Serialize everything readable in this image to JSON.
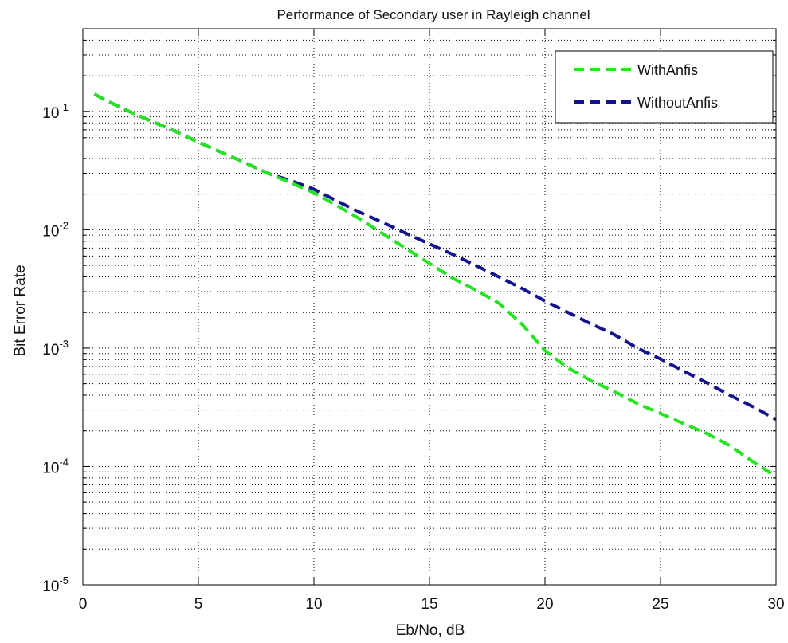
{
  "chart_data": {
    "type": "line",
    "title": "Performance of Secondary user in Rayleigh channel",
    "xlabel": "Eb/No, dB",
    "ylabel": "Bit Error Rate",
    "xlim": [
      0,
      30
    ],
    "ylim": [
      1e-05,
      0.5
    ],
    "yscale": "log",
    "grid": true,
    "legend_position": "top-right",
    "x_ticks": [
      0,
      5,
      10,
      15,
      20,
      25,
      30
    ],
    "y_ticks": [
      {
        "value": 1e-05,
        "base": "10",
        "exp": "-5"
      },
      {
        "value": 0.0001,
        "base": "10",
        "exp": "-4"
      },
      {
        "value": 0.001,
        "base": "10",
        "exp": "-3"
      },
      {
        "value": 0.01,
        "base": "10",
        "exp": "-2"
      },
      {
        "value": 0.1,
        "base": "10",
        "exp": "-1"
      }
    ],
    "x": [
      0.5,
      1,
      2,
      3,
      4,
      5,
      6,
      7,
      8,
      9,
      10,
      11,
      12,
      13,
      14,
      15,
      16,
      17,
      18,
      19,
      20,
      21,
      22,
      23,
      24,
      25,
      26,
      27,
      28,
      29,
      30
    ],
    "series": [
      {
        "name": "WithAnfis",
        "color": "#22e41f",
        "dash": "dashed",
        "values": [
          0.14,
          0.124,
          0.1,
          0.082,
          0.068,
          0.055,
          0.045,
          0.037,
          0.03,
          0.025,
          0.0205,
          0.016,
          0.0123,
          0.0092,
          0.0069,
          0.0052,
          0.0039,
          0.0031,
          0.0024,
          0.0016,
          0.00095,
          0.00068,
          0.00053,
          0.00043,
          0.00034,
          0.00028,
          0.00023,
          0.00019,
          0.00015,
          0.00011,
          8.2e-05
        ]
      },
      {
        "name": "WithoutAnfis",
        "color": "#14138f",
        "dash": "dashed",
        "values": [
          0.14,
          0.124,
          0.1,
          0.082,
          0.068,
          0.055,
          0.045,
          0.037,
          0.03,
          0.026,
          0.022,
          0.0175,
          0.014,
          0.0115,
          0.0093,
          0.0076,
          0.0062,
          0.005,
          0.004,
          0.0032,
          0.0025,
          0.002,
          0.0016,
          0.0013,
          0.001,
          0.00081,
          0.00064,
          0.00051,
          0.0004,
          0.00032,
          0.00025
        ]
      }
    ]
  }
}
